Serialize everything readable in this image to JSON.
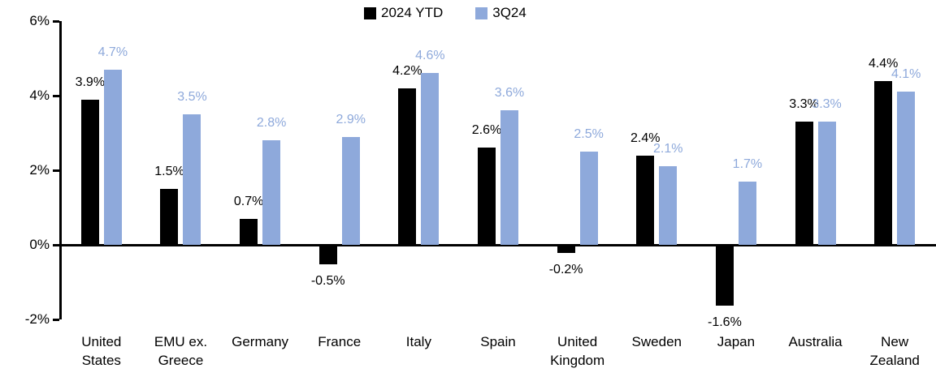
{
  "chart_data": {
    "type": "bar",
    "title": "",
    "categories": [
      "United\nStates",
      "EMU ex.\nGreece",
      "Germany",
      "France",
      "Italy",
      "Spain",
      "United\nKingdom",
      "Sweden",
      "Japan",
      "Australia",
      "New\nZealand"
    ],
    "series": [
      {
        "name": "2024 YTD",
        "color": "#000000",
        "label_color": "#000000",
        "values": [
          3.9,
          1.5,
          0.7,
          -0.5,
          4.2,
          2.6,
          -0.2,
          2.4,
          -1.6,
          3.3,
          4.4
        ],
        "labels": [
          "3.9%",
          "1.5%",
          "0.7%",
          "-0.5%",
          "4.2%",
          "2.6%",
          "-0.2%",
          "2.4%",
          "-1.6%",
          "3.3%",
          "4.4%"
        ]
      },
      {
        "name": "3Q24",
        "color": "#8EA9DB",
        "label_color": "#8EA9DB",
        "values": [
          4.7,
          3.5,
          2.8,
          2.9,
          4.6,
          3.6,
          2.5,
          2.1,
          1.7,
          3.3,
          4.1
        ],
        "labels": [
          "4.7%",
          "3.5%",
          "2.8%",
          "2.9%",
          "4.6%",
          "3.6%",
          "2.5%",
          "2.1%",
          "1.7%",
          "3.3%",
          "4.1%"
        ]
      }
    ],
    "y_axis": {
      "min": -2,
      "max": 6,
      "tick_step": 2,
      "tick_labels": [
        "6%",
        "4%",
        "2%",
        "0%",
        "-2%"
      ]
    },
    "legend": {
      "position": "top-center",
      "entries": [
        "2024 YTD",
        "3Q24"
      ]
    },
    "grid": false,
    "data_labels_visible": true
  }
}
